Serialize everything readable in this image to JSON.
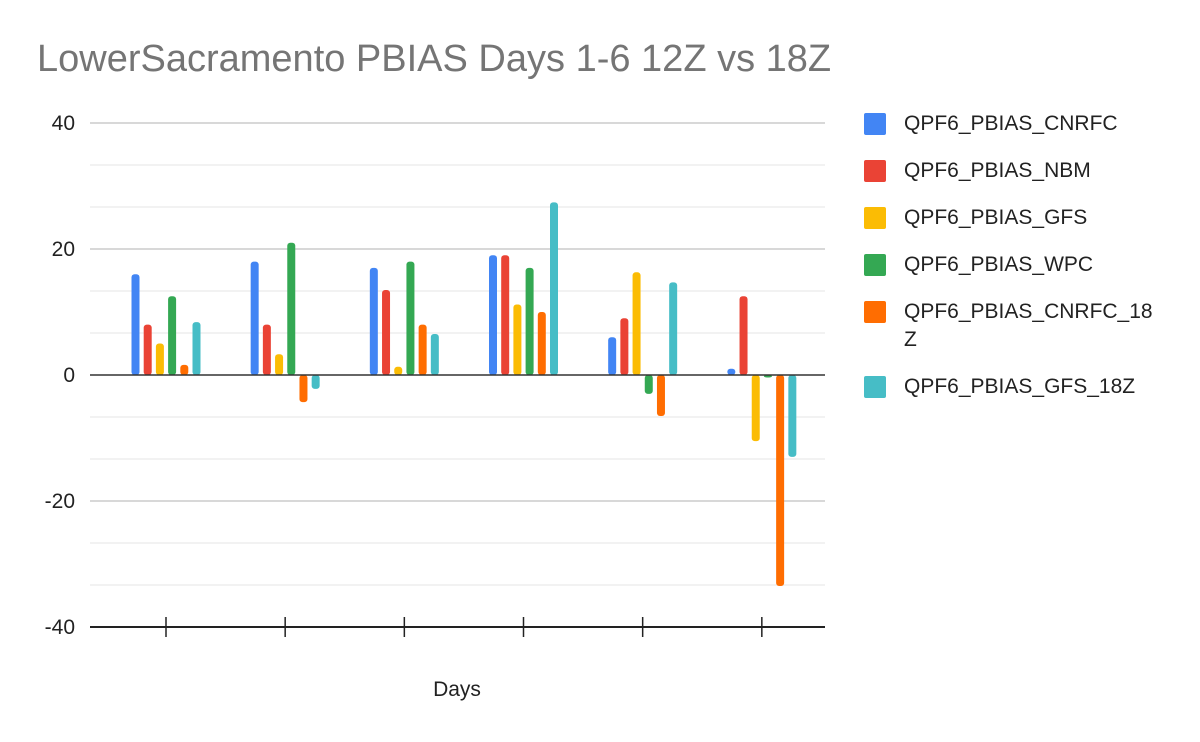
{
  "chart_data": {
    "type": "bar",
    "title": "LowerSacramento PBIAS Days 1-6 12Z vs 18Z",
    "xlabel": "Days",
    "ylabel": "",
    "categories": [
      "",
      "",
      "",
      "",
      "",
      ""
    ],
    "ylim": [
      -40,
      40
    ],
    "yticks": [
      "40",
      "20",
      "0",
      "-20",
      "-40"
    ],
    "grid": true,
    "legend_position": "right",
    "series": [
      {
        "name": "QPF6_PBIAS_CNRFC",
        "color": "#4285f4",
        "values": [
          16,
          18,
          17,
          19,
          6,
          1
        ]
      },
      {
        "name": "QPF6_PBIAS_NBM",
        "color": "#ea4335",
        "values": [
          8,
          8,
          13.5,
          19,
          9,
          12.5
        ]
      },
      {
        "name": "QPF6_PBIAS_GFS",
        "color": "#fbbc04",
        "values": [
          5,
          3.3,
          1.3,
          11.2,
          16.3,
          -10.5
        ]
      },
      {
        "name": "QPF6_PBIAS_WPC",
        "color": "#34a853",
        "values": [
          12.5,
          21,
          18,
          17,
          -3,
          -0.4
        ]
      },
      {
        "name": "QPF6_PBIAS_CNRFC_18Z",
        "color": "#ff6d01",
        "values": [
          1.6,
          -4.3,
          8,
          10,
          -6.5,
          -33.5
        ]
      },
      {
        "name": "QPF6_PBIAS_GFS_18Z",
        "color": "#46bdc6",
        "values": [
          8.4,
          -2.2,
          6.5,
          27.4,
          14.7,
          -13
        ]
      }
    ]
  }
}
